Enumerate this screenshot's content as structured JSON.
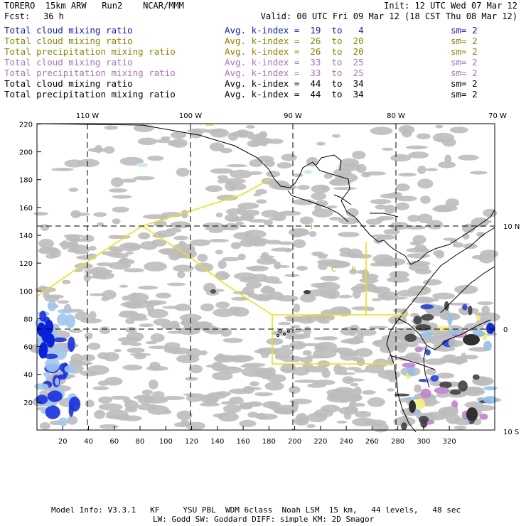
{
  "header": {
    "model": "TORERO  15km ARW   Run2    NCAR/MMM",
    "init": "Init: 12 UTC Wed 07 Mar 12",
    "fcst_label": "Fcst:",
    "fcst_value": "36 h",
    "valid": "Valid: 00 UTC Fri 09 Mar 12 (18 CST Thu 08 Mar 12)"
  },
  "legend": [
    {
      "name": "Total cloud mixing ratio",
      "kindex": "Avg. k-index =  19  to   4",
      "sm": "sm= 2",
      "color": "#1020c8"
    },
    {
      "name": "Total cloud mixing ratio",
      "kindex": "Avg. k-index =  26  to  20",
      "sm": "sm= 2",
      "color": "#8a8400"
    },
    {
      "name": "Total precipitation mixing ratio",
      "kindex": "Avg. k-index =  26  to  20",
      "sm": "sm= 2",
      "color": "#8a8400"
    },
    {
      "name": "Total cloud mixing ratio",
      "kindex": "Avg. k-index =  33  to  25",
      "sm": "sm= 2",
      "color": "#b070c0"
    },
    {
      "name": "Total precipitation mixing ratio",
      "kindex": "Avg. k-index =  33  to  25",
      "sm": "sm= 2",
      "color": "#b070c0"
    },
    {
      "name": "Total cloud mixing ratio",
      "kindex": "Avg. k-index =  44  to  34",
      "sm": "sm= 2",
      "color": "#000000"
    },
    {
      "name": "Total precipitation mixing ratio",
      "kindex": "Avg. k-index =  44  to  34",
      "sm": "sm= 2",
      "color": "#000000"
    }
  ],
  "map": {
    "top_lon_labels": [
      "110 W",
      "100 W",
      "90 W",
      "80 W",
      "70 W"
    ],
    "right_lat_labels": [
      "10 N",
      "0",
      "10 S"
    ],
    "left_y_ticks": [
      "220",
      "200",
      "180",
      "160",
      "140",
      "120",
      "100",
      "80",
      "60",
      "40",
      "20"
    ],
    "bottom_x_ticks": [
      "20",
      "40",
      "60",
      "80",
      "100",
      "120",
      "140",
      "160",
      "180",
      "200",
      "220",
      "240",
      "260",
      "280",
      "300",
      "320"
    ],
    "land_labels": [
      "I",
      "C",
      "R"
    ]
  },
  "footer": {
    "line1": "Model Info: V3.3.1   KF     YSU PBL  WDM 6class  Noah LSM  15 km,   44 levels,   48 sec",
    "line2": "LW: Godd SW: Goddard DIFF: simple KM: 2D Smagor"
  }
}
